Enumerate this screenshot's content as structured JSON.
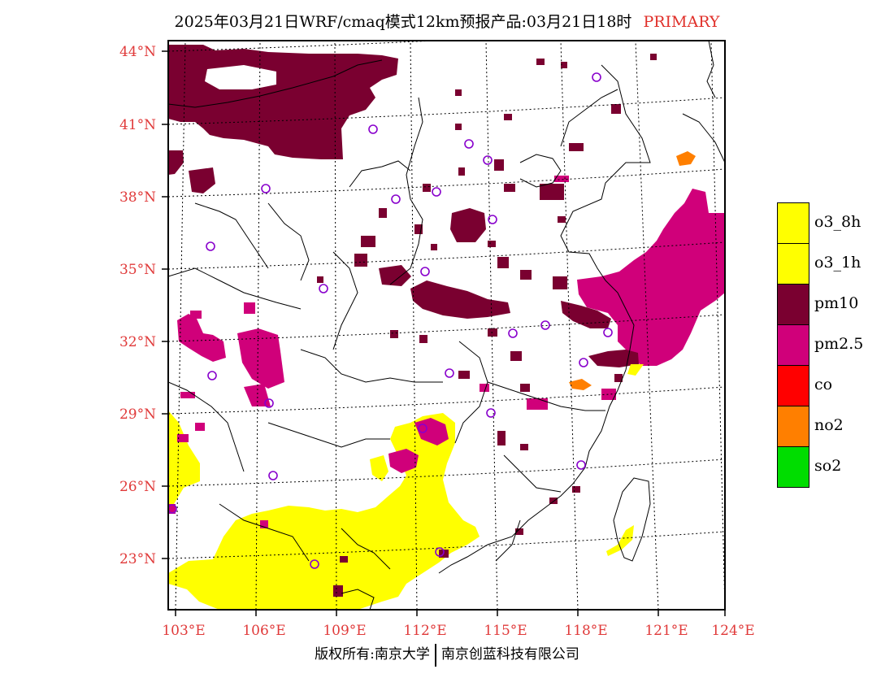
{
  "title": {
    "main": "2025年03月21日WRF/cmaq模式12km预报产品:03月21日18时",
    "tag": "PRIMARY"
  },
  "latitude_labels": [
    "44°N",
    "41°N",
    "38°N",
    "35°N",
    "32°N",
    "29°N",
    "26°N",
    "23°N"
  ],
  "longitude_labels": [
    "103°E",
    "106°E",
    "109°E",
    "112°E",
    "115°E",
    "118°E",
    "121°E",
    "124°E"
  ],
  "legend": [
    {
      "label": "o3_8h",
      "color": "#ffff00"
    },
    {
      "label": "o3_1h",
      "color": "#ffff00"
    },
    {
      "label": "pm10",
      "color": "#7a0030"
    },
    {
      "label": "pm2.5",
      "color": "#d0007a"
    },
    {
      "label": "co",
      "color": "#ff0000"
    },
    {
      "label": "no2",
      "color": "#ff7f00"
    },
    {
      "label": "so2",
      "color": "#00dd00"
    }
  ],
  "footer": {
    "left": "版权所有:南京大学",
    "right": "南京创蓝科技有限公司"
  }
}
